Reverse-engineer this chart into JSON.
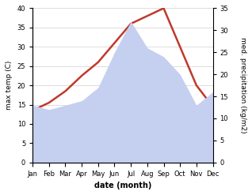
{
  "months": [
    "Jan",
    "Feb",
    "Mar",
    "Apr",
    "May",
    "Jun",
    "Jul",
    "Aug",
    "Sep",
    "Oct",
    "Nov",
    "Dec"
  ],
  "temp_max": [
    13.5,
    15.5,
    18.5,
    22.5,
    26.0,
    31.0,
    36.0,
    38.0,
    40.0,
    30.0,
    20.0,
    14.5
  ],
  "precip": [
    13.0,
    12.0,
    13.0,
    14.0,
    17.0,
    25.0,
    32.0,
    26.0,
    24.0,
    20.0,
    13.0,
    16.0
  ],
  "temp_color": "#c0392b",
  "precip_fill_color": "#c5cff0",
  "temp_ylim": [
    0,
    40
  ],
  "precip_ylim": [
    0,
    35
  ],
  "xlabel": "date (month)",
  "ylabel_left": "max temp (C)",
  "ylabel_right": "med. precipitation (kg/m2)",
  "bg_color": "#ffffff",
  "grid_color": "#d0d0d0",
  "temp_linewidth": 1.8,
  "label_fontsize": 6.5,
  "tick_fontsize": 6,
  "xlabel_fontsize": 7
}
